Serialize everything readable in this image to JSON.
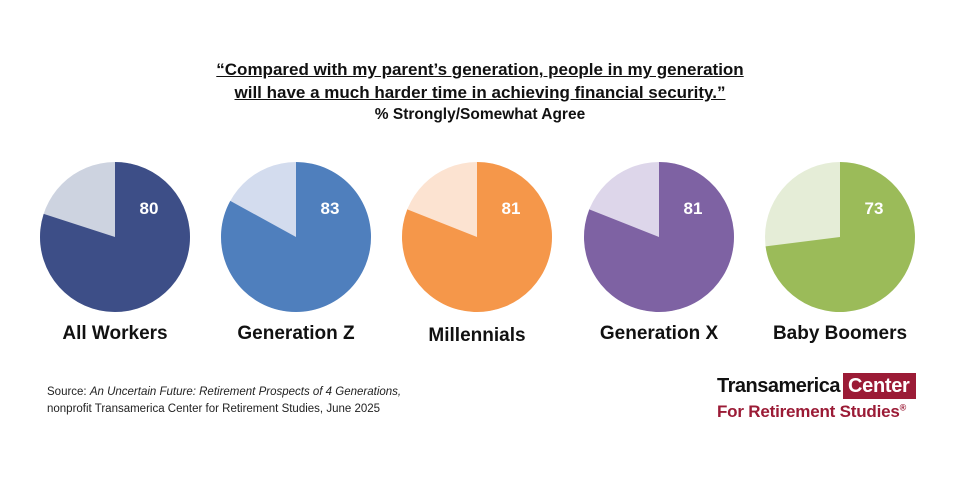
{
  "header": {
    "quote_line1": "“Compared with my parent’s generation, people in my generation",
    "quote_line2": "will have a much harder time in achieving financial security.”",
    "subtitle": "% Strongly/Somewhat Agree"
  },
  "chart_data": {
    "type": "pie",
    "title": "“Compared with my parent’s generation, people in my generation will have a much harder time in achieving financial security.”",
    "subtitle": "% Strongly/Somewhat Agree",
    "categories": [
      "All Workers",
      "Generation Z",
      "Millennials",
      "Generation X",
      "Baby Boomers"
    ],
    "values": [
      80,
      83,
      81,
      81,
      73
    ],
    "colors": [
      "#3d4e87",
      "#4f7fbd",
      "#f5974a",
      "#7e62a3",
      "#9bbb59"
    ],
    "remainder_colors": [
      "#cdd3e0",
      "#d3dcee",
      "#fce3d1",
      "#ddd6ea",
      "#e5edd7"
    ]
  },
  "footer": {
    "source_prefix": "Source: ",
    "source_title": "An Uncertain Future: Retirement Prospects of 4 Generations,",
    "source_line2": "nonprofit Transamerica Center for Retirement Studies, June 2025"
  },
  "logo": {
    "word1": "Transamerica",
    "word2": "Center",
    "line2": "For Retirement Studies",
    "registered": "®",
    "brand_color": "#9b1b36"
  }
}
